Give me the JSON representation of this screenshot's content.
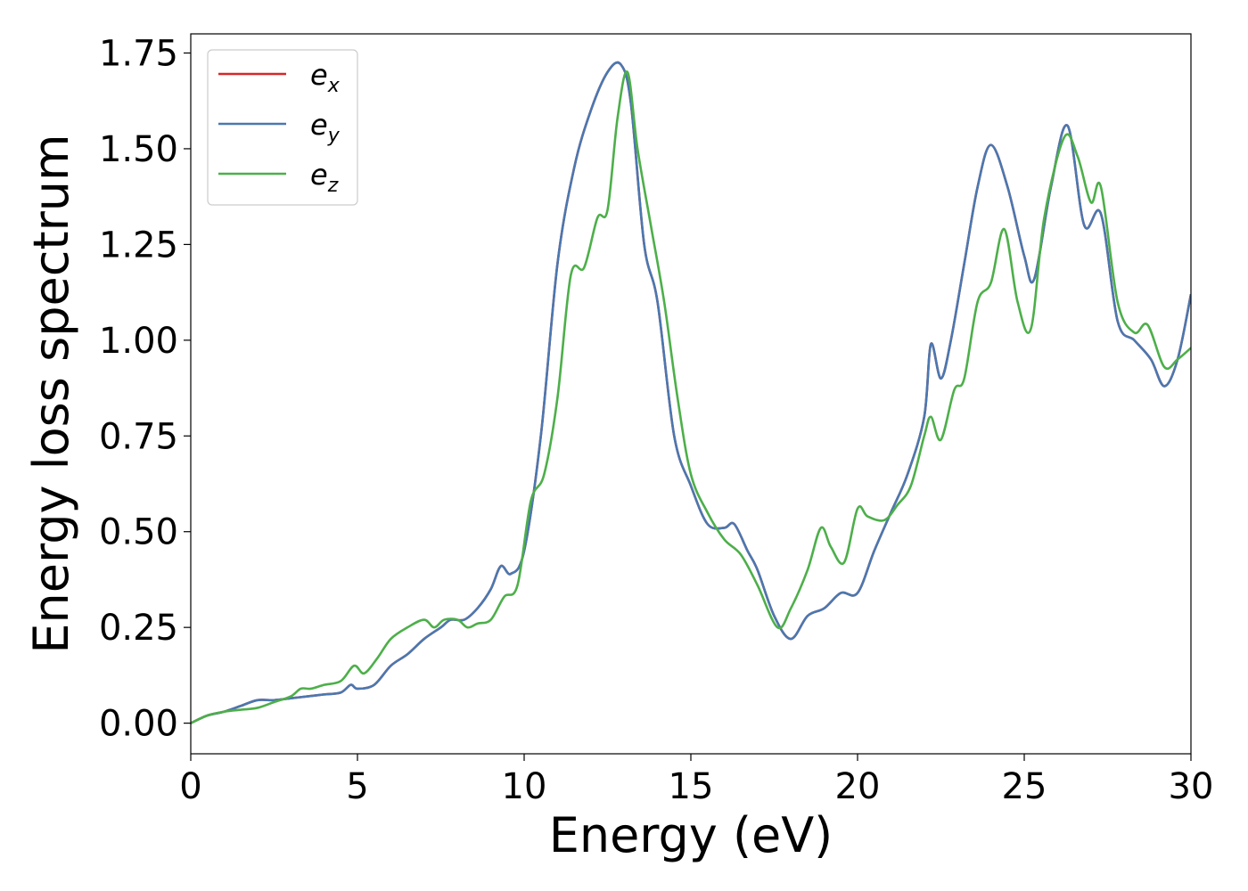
{
  "chart_data": {
    "type": "line",
    "title": "",
    "xlabel": "Energy (eV)",
    "ylabel": "Energy loss spectrum",
    "xlim": [
      0,
      30
    ],
    "ylim": [
      -0.08,
      1.8
    ],
    "xticks": [
      0,
      5,
      10,
      15,
      20,
      25,
      30
    ],
    "xtick_labels": [
      "0",
      "5",
      "10",
      "15",
      "20",
      "25",
      "30"
    ],
    "yticks": [
      0,
      0.25,
      0.5,
      0.75,
      1.0,
      1.25,
      1.5,
      1.75
    ],
    "ytick_labels": [
      "0.00",
      "0.25",
      "0.50",
      "0.75",
      "1.00",
      "1.25",
      "1.50",
      "1.75"
    ],
    "grid": false,
    "legend": {
      "placement": "top-left",
      "entries": [
        {
          "base": "e",
          "sub": "x",
          "color": "#d62728"
        },
        {
          "base": "e",
          "sub": "y",
          "color": "#4a78b0"
        },
        {
          "base": "e",
          "sub": "z",
          "color": "#4daf4a"
        }
      ]
    },
    "series": [
      {
        "name": "e_x",
        "color": "#d62728",
        "x": [
          0,
          0.5,
          1,
          1.5,
          2,
          2.5,
          3,
          3.5,
          4,
          4.5,
          4.8,
          5,
          5.5,
          6,
          6.5,
          7,
          7.5,
          7.8,
          8.2,
          8.6,
          9,
          9.3,
          9.6,
          10,
          10.5,
          11,
          11.5,
          12,
          12.5,
          12.9,
          13.2,
          13.6,
          14,
          14.5,
          15,
          15.5,
          16,
          16.3,
          16.7,
          17,
          17.5,
          18,
          18.5,
          19,
          19.5,
          20,
          20.5,
          21,
          21.5,
          22,
          22.2,
          22.5,
          22.8,
          23.2,
          23.6,
          24,
          24.5,
          25,
          25.3,
          25.8,
          26.3,
          26.8,
          27.3,
          27.8,
          28.3,
          28.8,
          29.2,
          29.6,
          30
        ],
        "values": [
          0.0,
          0.02,
          0.03,
          0.045,
          0.06,
          0.06,
          0.065,
          0.07,
          0.075,
          0.08,
          0.1,
          0.09,
          0.1,
          0.15,
          0.18,
          0.22,
          0.25,
          0.27,
          0.27,
          0.3,
          0.35,
          0.41,
          0.39,
          0.45,
          0.75,
          1.2,
          1.45,
          1.6,
          1.7,
          1.72,
          1.62,
          1.25,
          1.1,
          0.75,
          0.62,
          0.52,
          0.51,
          0.52,
          0.45,
          0.4,
          0.28,
          0.22,
          0.28,
          0.3,
          0.34,
          0.34,
          0.45,
          0.55,
          0.65,
          0.8,
          0.99,
          0.9,
          1.0,
          1.2,
          1.4,
          1.51,
          1.4,
          1.22,
          1.16,
          1.4,
          1.56,
          1.3,
          1.33,
          1.05,
          1.0,
          0.95,
          0.88,
          0.95,
          1.12
        ]
      },
      {
        "name": "e_y",
        "color": "#4a78b0",
        "x": [
          0,
          0.5,
          1,
          1.5,
          2,
          2.5,
          3,
          3.5,
          4,
          4.5,
          4.8,
          5,
          5.5,
          6,
          6.5,
          7,
          7.5,
          7.8,
          8.2,
          8.6,
          9,
          9.3,
          9.6,
          10,
          10.5,
          11,
          11.5,
          12,
          12.5,
          12.9,
          13.2,
          13.6,
          14,
          14.5,
          15,
          15.5,
          16,
          16.3,
          16.7,
          17,
          17.5,
          18,
          18.5,
          19,
          19.5,
          20,
          20.5,
          21,
          21.5,
          22,
          22.2,
          22.5,
          22.8,
          23.2,
          23.6,
          24,
          24.5,
          25,
          25.3,
          25.8,
          26.3,
          26.8,
          27.3,
          27.8,
          28.3,
          28.8,
          29.2,
          29.6,
          30
        ],
        "values": [
          0.0,
          0.02,
          0.03,
          0.045,
          0.06,
          0.06,
          0.065,
          0.07,
          0.075,
          0.08,
          0.1,
          0.09,
          0.1,
          0.15,
          0.18,
          0.22,
          0.25,
          0.27,
          0.27,
          0.3,
          0.35,
          0.41,
          0.39,
          0.45,
          0.75,
          1.2,
          1.45,
          1.6,
          1.7,
          1.72,
          1.62,
          1.25,
          1.1,
          0.75,
          0.62,
          0.52,
          0.51,
          0.52,
          0.45,
          0.4,
          0.28,
          0.22,
          0.28,
          0.3,
          0.34,
          0.34,
          0.45,
          0.55,
          0.65,
          0.8,
          0.99,
          0.9,
          1.0,
          1.2,
          1.4,
          1.51,
          1.4,
          1.22,
          1.16,
          1.4,
          1.56,
          1.3,
          1.33,
          1.05,
          1.0,
          0.95,
          0.88,
          0.95,
          1.12
        ]
      },
      {
        "name": "e_z",
        "color": "#4daf4a",
        "x": [
          0,
          0.5,
          1,
          1.5,
          2,
          2.5,
          3,
          3.3,
          3.6,
          4,
          4.5,
          4.9,
          5.2,
          5.6,
          6,
          6.5,
          7,
          7.3,
          7.6,
          8,
          8.3,
          8.6,
          9,
          9.4,
          9.8,
          10.2,
          10.6,
          11,
          11.4,
          11.8,
          12.2,
          12.5,
          12.8,
          13.1,
          13.4,
          13.8,
          14.2,
          14.6,
          15,
          15.5,
          16,
          16.5,
          17,
          17.6,
          18,
          18.5,
          18.9,
          19.2,
          19.6,
          20,
          20.3,
          20.8,
          21.2,
          21.6,
          22,
          22.2,
          22.5,
          22.9,
          23.2,
          23.6,
          24,
          24.4,
          24.8,
          25.2,
          25.6,
          26.2,
          26.6,
          27,
          27.3,
          27.8,
          28.3,
          28.7,
          29.2,
          29.6,
          30
        ],
        "values": [
          0.0,
          0.02,
          0.03,
          0.035,
          0.04,
          0.055,
          0.07,
          0.09,
          0.09,
          0.1,
          0.11,
          0.15,
          0.13,
          0.17,
          0.22,
          0.25,
          0.27,
          0.25,
          0.27,
          0.27,
          0.25,
          0.26,
          0.27,
          0.33,
          0.36,
          0.58,
          0.65,
          0.85,
          1.17,
          1.19,
          1.32,
          1.34,
          1.58,
          1.7,
          1.5,
          1.3,
          1.1,
          0.85,
          0.65,
          0.55,
          0.48,
          0.44,
          0.36,
          0.25,
          0.3,
          0.4,
          0.51,
          0.46,
          0.42,
          0.56,
          0.54,
          0.53,
          0.57,
          0.62,
          0.75,
          0.8,
          0.74,
          0.87,
          0.9,
          1.1,
          1.15,
          1.29,
          1.1,
          1.03,
          1.32,
          1.53,
          1.48,
          1.36,
          1.4,
          1.1,
          1.02,
          1.04,
          0.93,
          0.95,
          0.98
        ]
      }
    ]
  }
}
